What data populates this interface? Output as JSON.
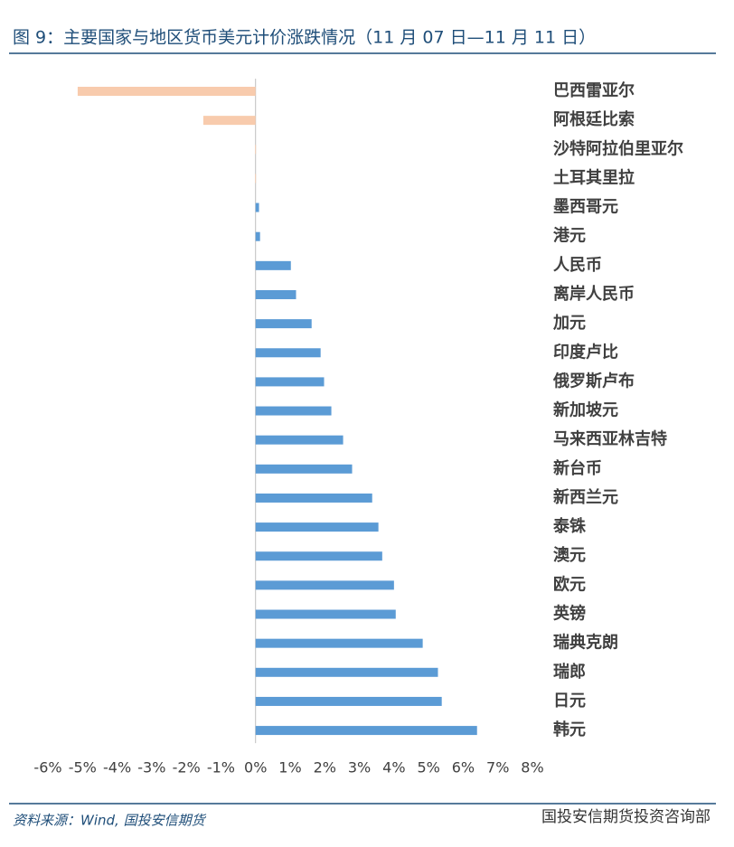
{
  "chart_data": {
    "type": "hbar",
    "title": "图 9：主要国家与地区货币美元计价涨跌情况（11 月 07 日—11 月 11 日）",
    "categories": [
      "巴西雷亚尔",
      "阿根廷比索",
      "沙特阿拉伯里亚尔",
      "土耳其里拉",
      "墨西哥元",
      "港元",
      "人民币",
      "离岸人民币",
      "加元",
      "印度卢比",
      "俄罗斯卢布",
      "新加坡元",
      "马来西亚林吉特",
      "新台币",
      "新西兰元",
      "泰铢",
      "澳元",
      "欧元",
      "英镑",
      "瑞典克朗",
      "瑞郎",
      "日元",
      "韩元"
    ],
    "values": [
      -5.14,
      -1.51,
      -0.01,
      -0.01,
      0.1,
      0.13,
      1.02,
      1.17,
      1.62,
      1.88,
      1.98,
      2.19,
      2.53,
      2.79,
      3.37,
      3.55,
      3.66,
      4.0,
      4.05,
      4.83,
      5.27,
      5.38,
      6.4
    ],
    "color": "#5b9bd5",
    "negative_color": "#f8cbad",
    "xlim": [
      -6,
      8
    ],
    "xticks": [
      {
        "value": -6,
        "label": "-6%"
      },
      {
        "value": -5,
        "label": "-5%"
      },
      {
        "value": -4,
        "label": "-4%"
      },
      {
        "value": -3,
        "label": "-3%"
      },
      {
        "value": -2,
        "label": "-2%"
      },
      {
        "value": -1,
        "label": "-1%"
      },
      {
        "value": 0,
        "label": "0%"
      },
      {
        "value": 1,
        "label": "1%"
      },
      {
        "value": 2,
        "label": "2%"
      },
      {
        "value": 3,
        "label": "3%"
      },
      {
        "value": 4,
        "label": "4%"
      },
      {
        "value": 5,
        "label": "5%"
      },
      {
        "value": 6,
        "label": "6%"
      },
      {
        "value": 7,
        "label": "7%"
      },
      {
        "value": 8,
        "label": "8%"
      }
    ],
    "source": "资料来源：Wind, 国投安信期货",
    "watermark": "国投安信期货投资咨询部"
  }
}
